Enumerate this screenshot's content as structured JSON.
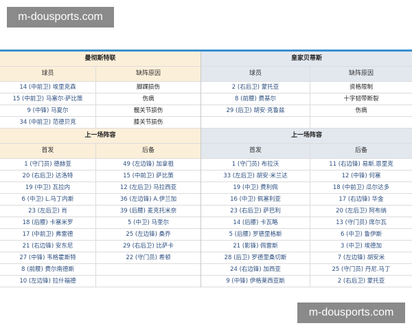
{
  "watermark": "m-dousports.com",
  "home": {
    "team": "曼彻斯特联",
    "injury_headers": [
      "球员",
      "缺阵原因"
    ],
    "injuries": [
      [
        "14 (中前卫) 埃里克森",
        "脚踝损伤"
      ],
      [
        "15 (中前卫) 马塞尔·萨比策",
        "伤病"
      ],
      [
        "9 (中锋) 马夏尔",
        "髋关节损伤"
      ],
      [
        "34 (中前卫) 范德贝克",
        "膝关节损伤"
      ]
    ],
    "lineup_title": "上一场阵容",
    "lineup_headers": [
      "首发",
      "后备"
    ],
    "lineup": [
      [
        "1 (守门员) 德赫亚",
        "49 (左边锋) 加拿祖"
      ],
      [
        "20 (右后卫) 达洛特",
        "15 (中前卫) 萨比策"
      ],
      [
        "19 (中卫) 瓦拉内",
        "12 (左后卫) 马拉西亚"
      ],
      [
        "6 (中卫) L.马丁内斯",
        "36 (左边锋) A.伊兰加"
      ],
      [
        "23 (左后卫) 肖",
        "39 (后腰) 麦克托米奈"
      ],
      [
        "18 (后腰) 卡塞米罗",
        "5 (中卫) 马奎尔"
      ],
      [
        "17 (中前卫) 弗雷德",
        "25 (左边锋) 桑乔"
      ],
      [
        "21 (右边锋) 安东尼",
        "29 (右后卫) 比萨卡"
      ],
      [
        "27 (中锋) 韦格霍斯特",
        "22 (守门员) 希顿"
      ],
      [
        "8 (前腰) 费尔南德斯",
        ""
      ],
      [
        "10 (左边锋) 拉什福德",
        ""
      ]
    ]
  },
  "away": {
    "team": "皇家贝蒂斯",
    "injury_headers": [
      "球员",
      "缺阵原因"
    ],
    "injuries": [
      [
        "2 (右后卫) 蒙托亚",
        "资格限制"
      ],
      [
        "8 (前腰) 费基尔",
        "十字韧带断裂"
      ],
      [
        "29 (后卫) 胡安·克鲁兹",
        "伤病"
      ],
      [
        "",
        ""
      ]
    ],
    "lineup_title": "上一场阵容",
    "lineup_headers": [
      "首发",
      "后备"
    ],
    "lineup": [
      [
        "1 (守门员) 布拉沃",
        "11 (右边锋) 易斯.恩里克"
      ],
      [
        "33 (左后卫) 胡安·米兰达",
        "12 (中锋) 何塞"
      ],
      [
        "19 (中卫) 费利佩",
        "18 (中前卫) 瓜尔达多"
      ],
      [
        "16 (中卫) 佩塞利亚",
        "17 (右边锋) 华金"
      ],
      [
        "23 (右后卫) 萨巴利",
        "20 (左后卫) 阿布纳"
      ],
      [
        "14 (后腰) 卡瓦略",
        "13 (守门员) 席尔瓦"
      ],
      [
        "5 (后腰) 罗德里格斯",
        "6 (中卫) 鲁伊斯"
      ],
      [
        "21 (影锋) 佩雷斯",
        "3 (中卫) 埃德加"
      ],
      [
        "28 (后卫) 罗德里桑切斯",
        "7 (左边锋) 胡安米"
      ],
      [
        "24 (右边锋) 加西亚",
        "25 (守门员) 丹尼.马丁"
      ],
      [
        "9 (中锋) 伊格莱西亚斯",
        "2 (右后卫) 蒙托亚"
      ]
    ]
  }
}
